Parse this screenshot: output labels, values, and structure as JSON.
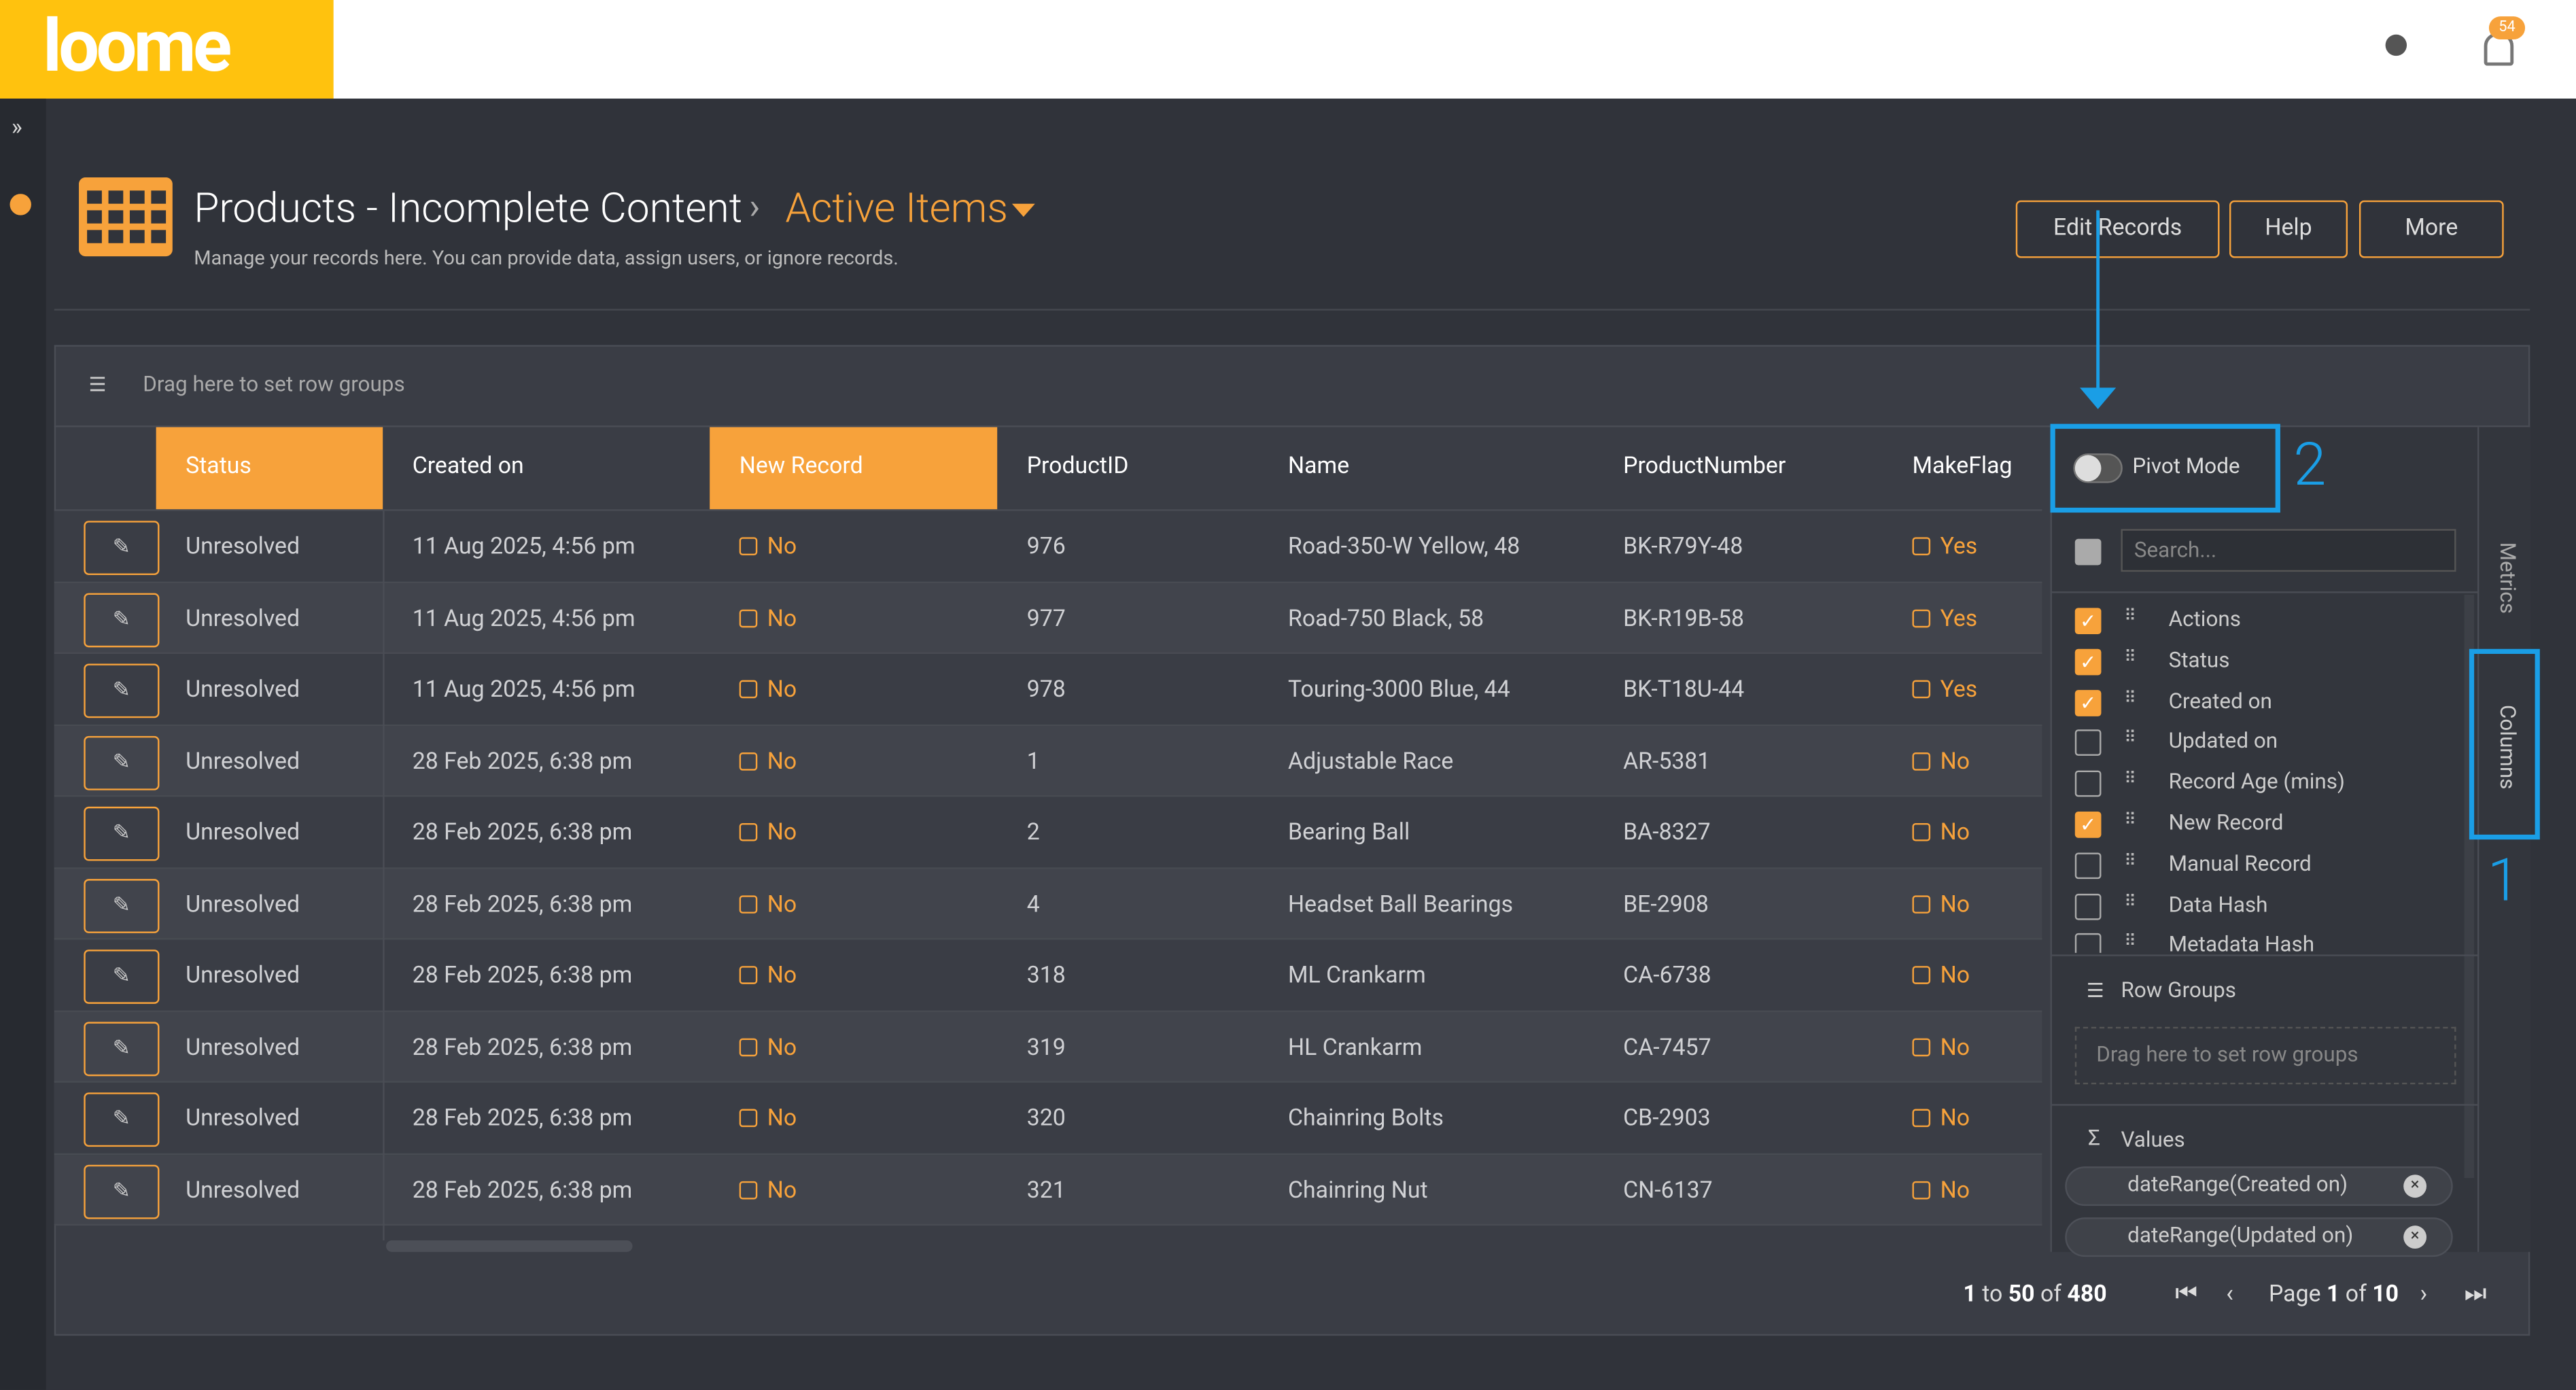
{
  "logo": "loome",
  "notifications": "54",
  "header": {
    "title": "Products - Incomplete Content",
    "view": "Active Items",
    "subtitle": "Manage your records here. You can provide data, assign users, or ignore records."
  },
  "buttons": [
    "Edit Records",
    "Help",
    "More"
  ],
  "grid": {
    "group_bar": "Drag here to set row groups",
    "columns": [
      "Status",
      "Created on",
      "New Record",
      "ProductID",
      "Name",
      "ProductNumber",
      "MakeFlag"
    ],
    "rows": [
      [
        "Unresolved",
        "11 Aug 2025, 4:56 pm",
        "No",
        "976",
        "Road-350-W Yellow, 48",
        "BK-R79Y-48",
        "Yes"
      ],
      [
        "Unresolved",
        "11 Aug 2025, 4:56 pm",
        "No",
        "977",
        "Road-750 Black, 58",
        "BK-R19B-58",
        "Yes"
      ],
      [
        "Unresolved",
        "11 Aug 2025, 4:56 pm",
        "No",
        "978",
        "Touring-3000 Blue, 44",
        "BK-T18U-44",
        "Yes"
      ],
      [
        "Unresolved",
        "28 Feb 2025, 6:38 pm",
        "No",
        "1",
        "Adjustable Race",
        "AR-5381",
        "No"
      ],
      [
        "Unresolved",
        "28 Feb 2025, 6:38 pm",
        "No",
        "2",
        "Bearing Ball",
        "BA-8327",
        "No"
      ],
      [
        "Unresolved",
        "28 Feb 2025, 6:38 pm",
        "No",
        "4",
        "Headset Ball Bearings",
        "BE-2908",
        "No"
      ],
      [
        "Unresolved",
        "28 Feb 2025, 6:38 pm",
        "No",
        "318",
        "ML Crankarm",
        "CA-6738",
        "No"
      ],
      [
        "Unresolved",
        "28 Feb 2025, 6:38 pm",
        "No",
        "319",
        "HL Crankarm",
        "CA-7457",
        "No"
      ],
      [
        "Unresolved",
        "28 Feb 2025, 6:38 pm",
        "No",
        "320",
        "Chainring Bolts",
        "CB-2903",
        "No"
      ],
      [
        "Unresolved",
        "28 Feb 2025, 6:38 pm",
        "No",
        "321",
        "Chainring Nut",
        "CN-6137",
        "No"
      ]
    ]
  },
  "panel": {
    "pivot_mode": "Pivot Mode",
    "search": "Search...",
    "columns": [
      {
        "name": "Actions",
        "checked": true
      },
      {
        "name": "Status",
        "checked": true
      },
      {
        "name": "Created on",
        "checked": true
      },
      {
        "name": "Updated on",
        "checked": false
      },
      {
        "name": "Record Age (mins)",
        "checked": false
      },
      {
        "name": "New Record",
        "checked": true
      },
      {
        "name": "Manual Record",
        "checked": false
      },
      {
        "name": "Data Hash",
        "checked": false
      },
      {
        "name": "Metadata Hash",
        "checked": false
      }
    ],
    "row_groups": "Row Groups",
    "row_groups_drop": "Drag here to set row groups",
    "values": "Values",
    "value_items": [
      "dateRange(Created on)",
      "dateRange(Updated on)"
    ]
  },
  "side_tabs": [
    "Metrics",
    "Columns"
  ],
  "annotations": [
    "1",
    "2"
  ],
  "pagination": {
    "from": "1",
    "to_word": "to",
    "to": "50",
    "of_word": "of",
    "total": "480",
    "page_word": "Page",
    "page": "1",
    "pages": "10"
  }
}
